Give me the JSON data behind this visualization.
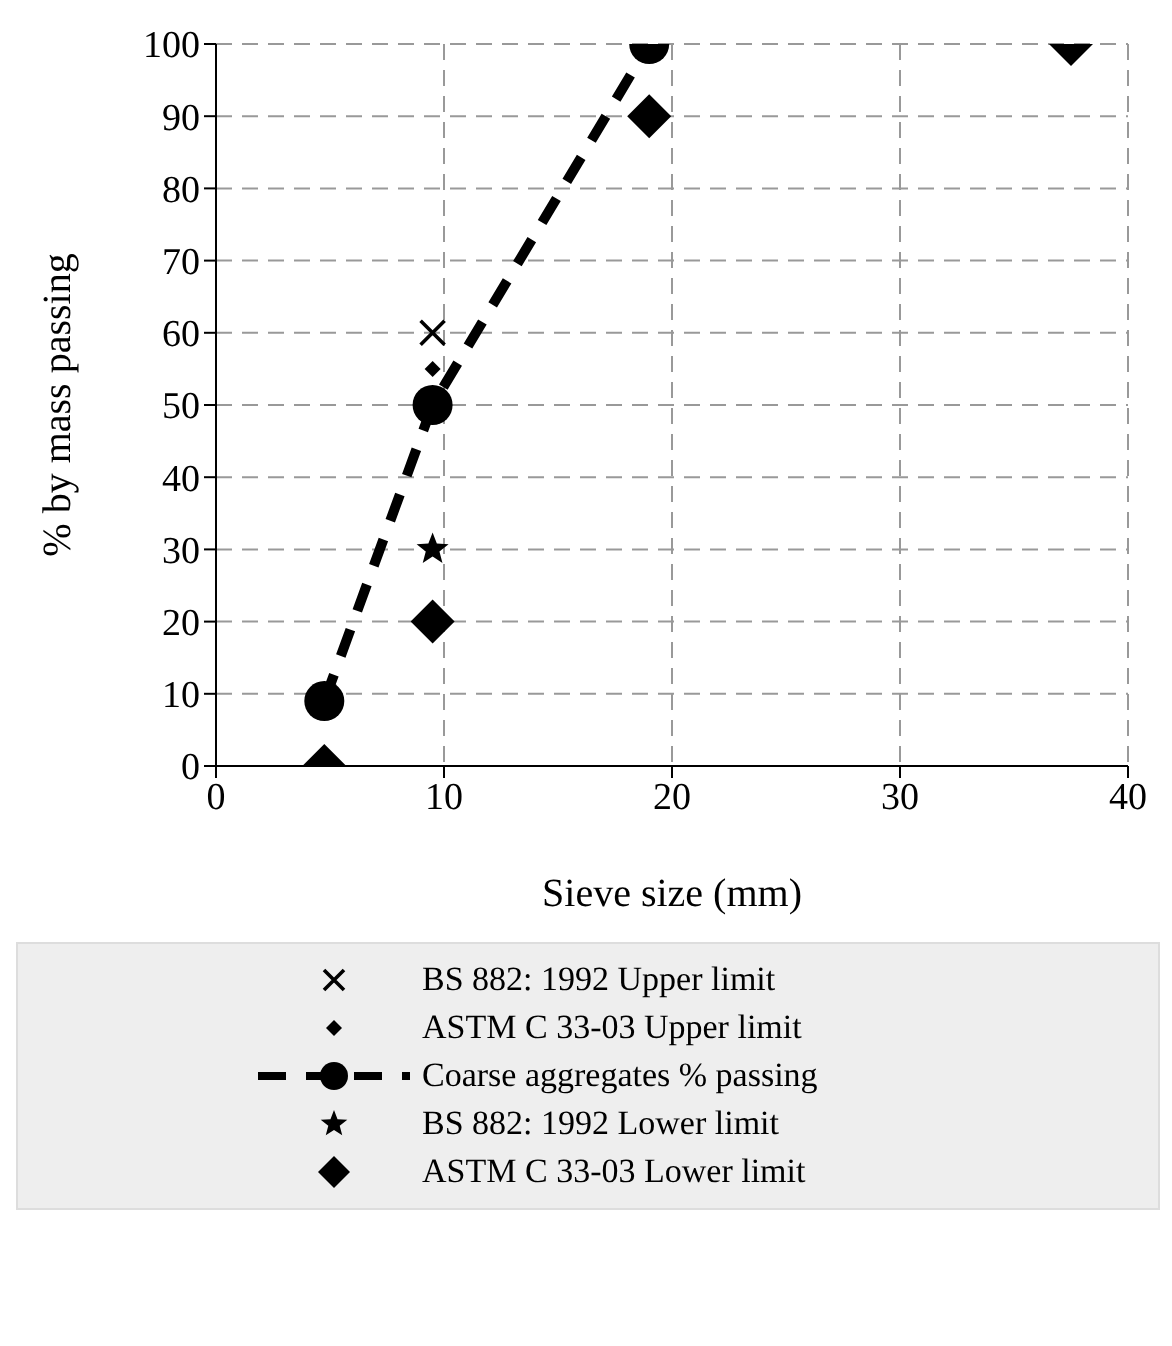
{
  "chart_data": {
    "type": "scatter",
    "xlabel": "Sieve size (mm)",
    "ylabel": "% by mass passing",
    "xlim": [
      0,
      40
    ],
    "xticks": [
      0,
      10,
      20,
      30,
      40
    ],
    "ylim": [
      0,
      100
    ],
    "yticks": [
      0,
      10,
      20,
      30,
      40,
      50,
      60,
      70,
      80,
      90,
      100
    ],
    "grid": true,
    "legend": "bottom",
    "series": [
      {
        "name": "BS 882: 1992 Upper limit",
        "color": "#000000",
        "marker": "cross",
        "x": [
          9.5
        ],
        "values": [
          60
        ]
      },
      {
        "name": "ASTM C  33-03 Upper limit",
        "color": "#000000",
        "marker": "diamond",
        "x": [
          9.5
        ],
        "values": [
          55
        ]
      },
      {
        "name": "Coarse aggregates % passing",
        "type": "line",
        "line_style": "dashed",
        "color": "#000000",
        "marker": "circle",
        "x": [
          4.75,
          9.5,
          19
        ],
        "values": [
          9,
          50,
          100
        ]
      },
      {
        "name": "BS 882: 1992 Lower limit",
        "color": "#000000",
        "marker": "star",
        "x": [
          9.5
        ],
        "values": [
          30
        ]
      },
      {
        "name": "ASTM C  33-03 Lower limit",
        "color": "#000000",
        "marker": "diamond",
        "x": [
          4.75,
          9.5,
          19,
          37.5
        ],
        "values": [
          0,
          20,
          90,
          100
        ]
      }
    ]
  }
}
